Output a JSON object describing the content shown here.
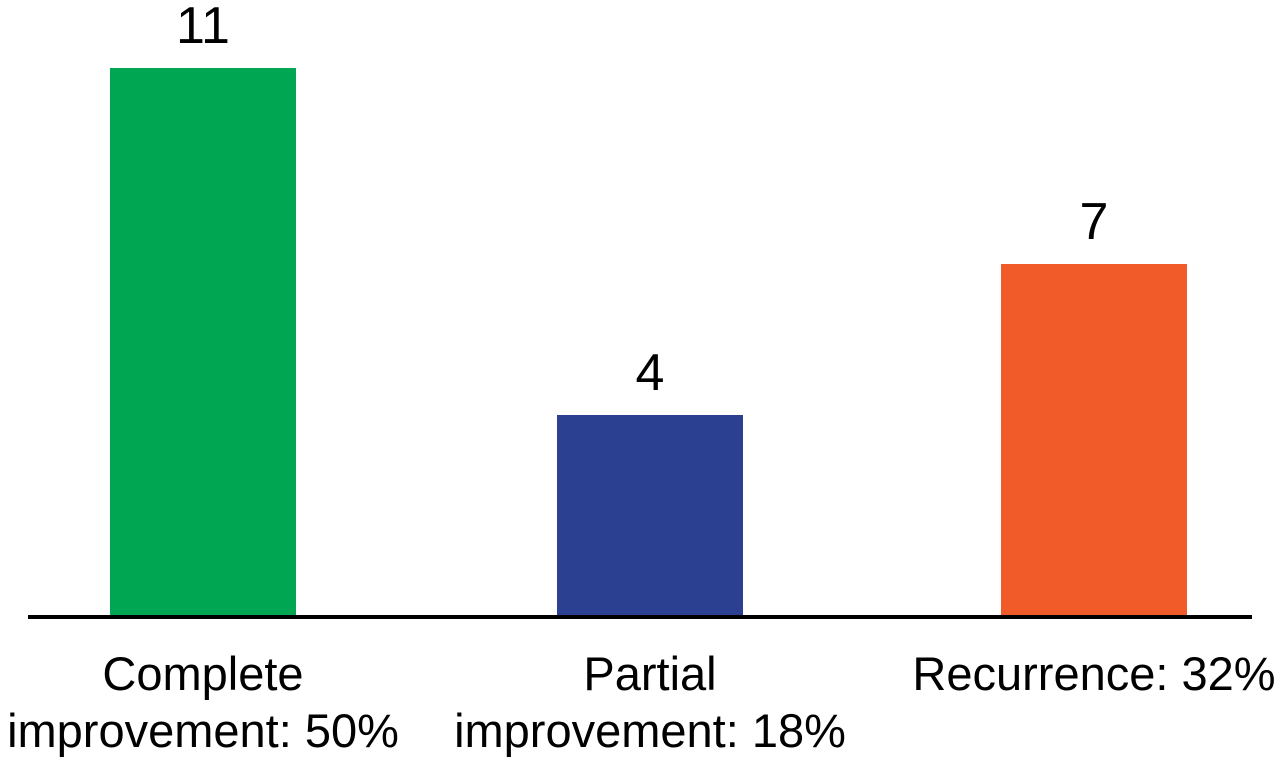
{
  "chart_data": {
    "type": "bar",
    "title": "",
    "xlabel": "",
    "ylabel": "",
    "ylim": [
      0,
      11
    ],
    "grid": false,
    "legend": false,
    "background": "#FFFFFF",
    "axis_color": "#000000",
    "categories": [
      "Complete improvement: 50%",
      "Partial improvement: 18%",
      "Recurrence: 32%"
    ],
    "values": [
      11,
      4,
      7
    ],
    "bars": [
      {
        "category": "Complete improvement: 50%",
        "value": 11,
        "percent": "50%",
        "color": "#00A651"
      },
      {
        "category": "Partial improvement: 18%",
        "value": 4,
        "percent": "18%",
        "color": "#2B4090"
      },
      {
        "category": "Recurrence: 32%",
        "value": 7,
        "percent": "32%",
        "color": "#F15A29"
      }
    ]
  }
}
